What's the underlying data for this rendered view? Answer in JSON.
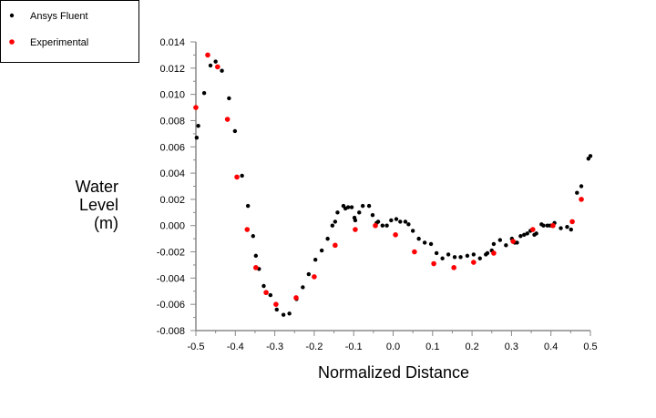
{
  "chart_data": {
    "type": "scatter",
    "title": "",
    "xlabel": "Normalized Distance",
    "ylabel": [
      "Water",
      "Level",
      "(m)"
    ],
    "xlim": [
      -0.5,
      0.5
    ],
    "ylim": [
      -0.008,
      0.014
    ],
    "xticks": [
      "-0.5",
      "-0.4",
      "-0.3",
      "-0.2",
      "-0.1",
      "0.0",
      "0.1",
      "0.2",
      "0.3",
      "0.4",
      "0.5"
    ],
    "yticks": [
      "-0.008",
      "-0.006",
      "-0.004",
      "-0.002",
      "0.000",
      "0.002",
      "0.004",
      "0.006",
      "0.008",
      "0.010",
      "0.012",
      "0.014"
    ],
    "grid": false,
    "legend": "top-left",
    "series": [
      {
        "name": "Ansys Fluent",
        "color": "#000000",
        "points": [
          [
            -0.498,
            0.0067
          ],
          [
            -0.494,
            0.0076
          ],
          [
            -0.479,
            0.0101
          ],
          [
            -0.463,
            0.0122
          ],
          [
            -0.45,
            0.0125
          ],
          [
            -0.434,
            0.0118
          ],
          [
            -0.416,
            0.0097
          ],
          [
            -0.401,
            0.0072
          ],
          [
            -0.383,
            0.0038
          ],
          [
            -0.368,
            0.0015
          ],
          [
            -0.355,
            -0.0008
          ],
          [
            -0.348,
            -0.0023
          ],
          [
            -0.34,
            -0.0033
          ],
          [
            -0.328,
            -0.0046
          ],
          [
            -0.311,
            -0.0053
          ],
          [
            -0.295,
            -0.0064
          ],
          [
            -0.278,
            -0.0068
          ],
          [
            -0.263,
            -0.0067
          ],
          [
            -0.245,
            -0.0056
          ],
          [
            -0.229,
            -0.0047
          ],
          [
            -0.214,
            -0.0037
          ],
          [
            -0.197,
            -0.0026
          ],
          [
            -0.181,
            -0.0019
          ],
          [
            -0.166,
            -0.001
          ],
          [
            -0.154,
            0.0
          ],
          [
            -0.147,
            0.0003
          ],
          [
            -0.141,
            0.001
          ],
          [
            -0.126,
            0.0015
          ],
          [
            -0.121,
            0.0013
          ],
          [
            -0.114,
            0.0014
          ],
          [
            -0.105,
            0.0014
          ],
          [
            -0.098,
            0.0006
          ],
          [
            -0.096,
            0.0004
          ],
          [
            -0.086,
            0.001
          ],
          [
            -0.077,
            0.0015
          ],
          [
            -0.061,
            0.0015
          ],
          [
            -0.052,
            0.0008
          ],
          [
            -0.042,
            0.0002
          ],
          [
            -0.038,
            0.0003
          ],
          [
            -0.027,
            0.0
          ],
          [
            -0.016,
            0.0
          ],
          [
            -0.005,
            0.0004
          ],
          [
            0.008,
            0.0005
          ],
          [
            0.018,
            0.0003
          ],
          [
            0.031,
            0.0003
          ],
          [
            0.039,
            0.0001
          ],
          [
            0.05,
            -0.0004
          ],
          [
            0.065,
            -0.001
          ],
          [
            0.08,
            -0.0013
          ],
          [
            0.096,
            -0.0014
          ],
          [
            0.11,
            -0.0021
          ],
          [
            0.125,
            -0.0025
          ],
          [
            0.14,
            -0.0022
          ],
          [
            0.156,
            -0.0024
          ],
          [
            0.171,
            -0.0024
          ],
          [
            0.188,
            -0.0023
          ],
          [
            0.204,
            -0.0022
          ],
          [
            0.22,
            -0.0025
          ],
          [
            0.235,
            -0.0022
          ],
          [
            0.239,
            -0.0021
          ],
          [
            0.25,
            -0.0019
          ],
          [
            0.255,
            -0.0014
          ],
          [
            0.271,
            -0.0011
          ],
          [
            0.286,
            -0.0015
          ],
          [
            0.301,
            -0.001
          ],
          [
            0.308,
            -0.0013
          ],
          [
            0.314,
            -0.0013
          ],
          [
            0.323,
            -0.0008
          ],
          [
            0.332,
            -0.0007
          ],
          [
            0.34,
            -0.0006
          ],
          [
            0.348,
            -0.0004
          ],
          [
            0.358,
            -0.0007
          ],
          [
            0.363,
            -0.0006
          ],
          [
            0.376,
            0.0001
          ],
          [
            0.381,
            0.0
          ],
          [
            0.391,
            0.0
          ],
          [
            0.398,
            0.0
          ],
          [
            0.409,
            0.0002
          ],
          [
            0.425,
            -0.0002
          ],
          [
            0.441,
            -0.0001
          ],
          [
            0.451,
            -0.0003
          ],
          [
            0.466,
            0.0025
          ],
          [
            0.477,
            0.003
          ],
          [
            0.495,
            0.0051
          ],
          [
            0.5,
            0.0053
          ]
        ]
      },
      {
        "name": "Experimental",
        "color": "#ff0000",
        "points": [
          [
            -0.5,
            0.009
          ],
          [
            -0.47,
            0.013
          ],
          [
            -0.445,
            0.0121
          ],
          [
            -0.42,
            0.0081
          ],
          [
            -0.396,
            0.0037
          ],
          [
            -0.37,
            -0.0003
          ],
          [
            -0.348,
            -0.0032
          ],
          [
            -0.322,
            -0.0051
          ],
          [
            -0.297,
            -0.006
          ],
          [
            -0.246,
            -0.0055
          ],
          [
            -0.2,
            -0.0039
          ],
          [
            -0.147,
            -0.0015
          ],
          [
            -0.096,
            -0.0003
          ],
          [
            -0.045,
            0.0
          ],
          [
            0.006,
            -0.0007
          ],
          [
            0.054,
            -0.002
          ],
          [
            0.103,
            -0.0029
          ],
          [
            0.154,
            -0.0032
          ],
          [
            0.204,
            -0.0028
          ],
          [
            0.255,
            -0.0021
          ],
          [
            0.304,
            -0.0012
          ],
          [
            0.354,
            -0.0003
          ],
          [
            0.405,
            0.0
          ],
          [
            0.454,
            0.0003
          ],
          [
            0.477,
            0.002
          ]
        ]
      }
    ]
  }
}
